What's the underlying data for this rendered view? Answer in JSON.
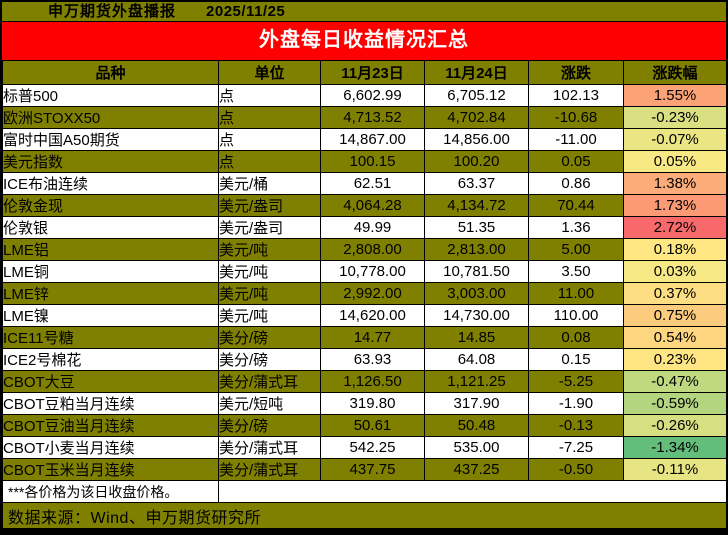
{
  "topbar": {
    "title": "申万期货外盘播报",
    "date": "2025/11/25"
  },
  "banner": {
    "title": "外盘每日收益情况汇总"
  },
  "table": {
    "headers": [
      "品种",
      "单位",
      "11月23日",
      "11月24日",
      "涨跌",
      "涨跌幅"
    ],
    "rows": [
      {
        "name": "标普500",
        "unit": "点",
        "d23": "6,602.99",
        "d24": "6,705.12",
        "chg": "102.13",
        "pct": "1.55%",
        "pct_color": "#FBA376"
      },
      {
        "name": "欧洲STOXX50",
        "unit": "点",
        "d23": "4,713.52",
        "d24": "4,702.84",
        "chg": "-10.68",
        "pct": "-0.23%",
        "pct_color": "#DAE082"
      },
      {
        "name": "富时中国A50期货",
        "unit": "点",
        "d23": "14,867.00",
        "d24": "14,856.00",
        "chg": "-11.00",
        "pct": "-0.07%",
        "pct_color": "#EBE583"
      },
      {
        "name": "美元指数",
        "unit": "点",
        "d23": "100.15",
        "d24": "100.20",
        "chg": "0.05",
        "pct": "0.05%",
        "pct_color": "#F8E984"
      },
      {
        "name": "ICE布油连续",
        "unit": "美元/桶",
        "d23": "62.51",
        "d24": "63.37",
        "chg": "0.86",
        "pct": "1.38%",
        "pct_color": "#FCAC78"
      },
      {
        "name": "伦敦金现",
        "unit": "美元/盎司",
        "d23": "4,064.28",
        "d24": "4,134.72",
        "chg": "70.44",
        "pct": "1.73%",
        "pct_color": "#FB9A75"
      },
      {
        "name": "伦敦银",
        "unit": "美元/盎司",
        "d23": "49.99",
        "d24": "51.35",
        "chg": "1.36",
        "pct": "2.72%",
        "pct_color": "#F8696B"
      },
      {
        "name": "LME铝",
        "unit": "美元/吨",
        "d23": "2,808.00",
        "d24": "2,813.00",
        "chg": "5.00",
        "pct": "0.18%",
        "pct_color": "#FFE883"
      },
      {
        "name": "LME铜",
        "unit": "美元/吨",
        "d23": "10,778.00",
        "d24": "10,781.50",
        "chg": "3.50",
        "pct": "0.03%",
        "pct_color": "#F6E884"
      },
      {
        "name": "LME锌",
        "unit": "美元/吨",
        "d23": "2,992.00",
        "d24": "3,003.00",
        "chg": "11.00",
        "pct": "0.37%",
        "pct_color": "#FEDE82"
      },
      {
        "name": "LME镍",
        "unit": "美元/吨",
        "d23": "14,620.00",
        "d24": "14,730.00",
        "chg": "110.00",
        "pct": "0.75%",
        "pct_color": "#FDCB7E"
      },
      {
        "name": "ICE11号糖",
        "unit": "美分/磅",
        "d23": "14.77",
        "d24": "14.85",
        "chg": "0.08",
        "pct": "0.54%",
        "pct_color": "#FED680"
      },
      {
        "name": "ICE2号棉花",
        "unit": "美分/磅",
        "d23": "63.93",
        "d24": "64.08",
        "chg": "0.15",
        "pct": "0.23%",
        "pct_color": "#FFE583"
      },
      {
        "name": "CBOT大豆",
        "unit": "美分/蒲式耳",
        "d23": "1,126.50",
        "d24": "1,121.25",
        "chg": "-5.25",
        "pct": "-0.47%",
        "pct_color": "#C0D980"
      },
      {
        "name": "CBOT豆粕当月连续",
        "unit": "美元/短吨",
        "d23": "319.80",
        "d24": "317.90",
        "chg": "-1.90",
        "pct": "-0.59%",
        "pct_color": "#B3D580"
      },
      {
        "name": "CBOT豆油当月连续",
        "unit": "美分/磅",
        "d23": "50.61",
        "d24": "50.48",
        "chg": "-0.13",
        "pct": "-0.26%",
        "pct_color": "#D7DF82"
      },
      {
        "name": "CBOT小麦当月连续",
        "unit": "美分/蒲式耳",
        "d23": "542.25",
        "d24": "535.00",
        "chg": "-7.25",
        "pct": "-1.34%",
        "pct_color": "#63BE7B"
      },
      {
        "name": "CBOT玉米当月连续",
        "unit": "美分/蒲式耳",
        "d23": "437.75",
        "d24": "437.25",
        "chg": "-0.50",
        "pct": "-0.11%",
        "pct_color": "#E7E483"
      }
    ]
  },
  "footnote": {
    "text": "***各价格为该日收盘价格。"
  },
  "source": {
    "text": "数据来源：Wind、申万期货研究所"
  },
  "colors": {
    "olive_fill": "#808000",
    "banner_red": "#FE0000",
    "banner_text": "#FFFFFF",
    "border_black": "#000000",
    "scale_max_red": "#F8696B",
    "scale_mid_yellow": "#FFEB84",
    "scale_min_green": "#63BE7B"
  },
  "chart_data": {
    "type": "table",
    "title": "外盘每日收益情况汇总",
    "columns": [
      "品种",
      "单位",
      "11月23日",
      "11月24日",
      "涨跌",
      "涨跌幅"
    ],
    "rows": [
      [
        "标普500",
        "点",
        6602.99,
        6705.12,
        102.13,
        "1.55%"
      ],
      [
        "欧洲STOXX50",
        "点",
        4713.52,
        4702.84,
        -10.68,
        "-0.23%"
      ],
      [
        "富时中国A50期货",
        "点",
        14867.0,
        14856.0,
        -11.0,
        "-0.07%"
      ],
      [
        "美元指数",
        "点",
        100.15,
        100.2,
        0.05,
        "0.05%"
      ],
      [
        "ICE布油连续",
        "美元/桶",
        62.51,
        63.37,
        0.86,
        "1.38%"
      ],
      [
        "伦敦金现",
        "美元/盎司",
        4064.28,
        4134.72,
        70.44,
        "1.73%"
      ],
      [
        "伦敦银",
        "美元/盎司",
        49.99,
        51.35,
        1.36,
        "2.72%"
      ],
      [
        "LME铝",
        "美元/吨",
        2808.0,
        2813.0,
        5.0,
        "0.18%"
      ],
      [
        "LME铜",
        "美元/吨",
        10778.0,
        10781.5,
        3.5,
        "0.03%"
      ],
      [
        "LME锌",
        "美元/吨",
        2992.0,
        3003.0,
        11.0,
        "0.37%"
      ],
      [
        "LME镍",
        "美元/吨",
        14620.0,
        14730.0,
        110.0,
        "0.75%"
      ],
      [
        "ICE11号糖",
        "美分/磅",
        14.77,
        14.85,
        0.08,
        "0.54%"
      ],
      [
        "ICE2号棉花",
        "美分/磅",
        63.93,
        64.08,
        0.15,
        "0.23%"
      ],
      [
        "CBOT大豆",
        "美分/蒲式耳",
        1126.5,
        1121.25,
        -5.25,
        "-0.47%"
      ],
      [
        "CBOT豆粕当月连续",
        "美元/短吨",
        319.8,
        317.9,
        -1.9,
        "-0.59%"
      ],
      [
        "CBOT豆油当月连续",
        "美分/磅",
        50.61,
        50.48,
        -0.13,
        "-0.26%"
      ],
      [
        "CBOT小麦当月连续",
        "美分/蒲式耳",
        542.25,
        535.0,
        -7.25,
        "-1.34%"
      ],
      [
        "CBOT玉米当月连续",
        "美分/蒲式耳",
        437.75,
        437.25,
        -0.5,
        "-0.11%"
      ]
    ]
  }
}
